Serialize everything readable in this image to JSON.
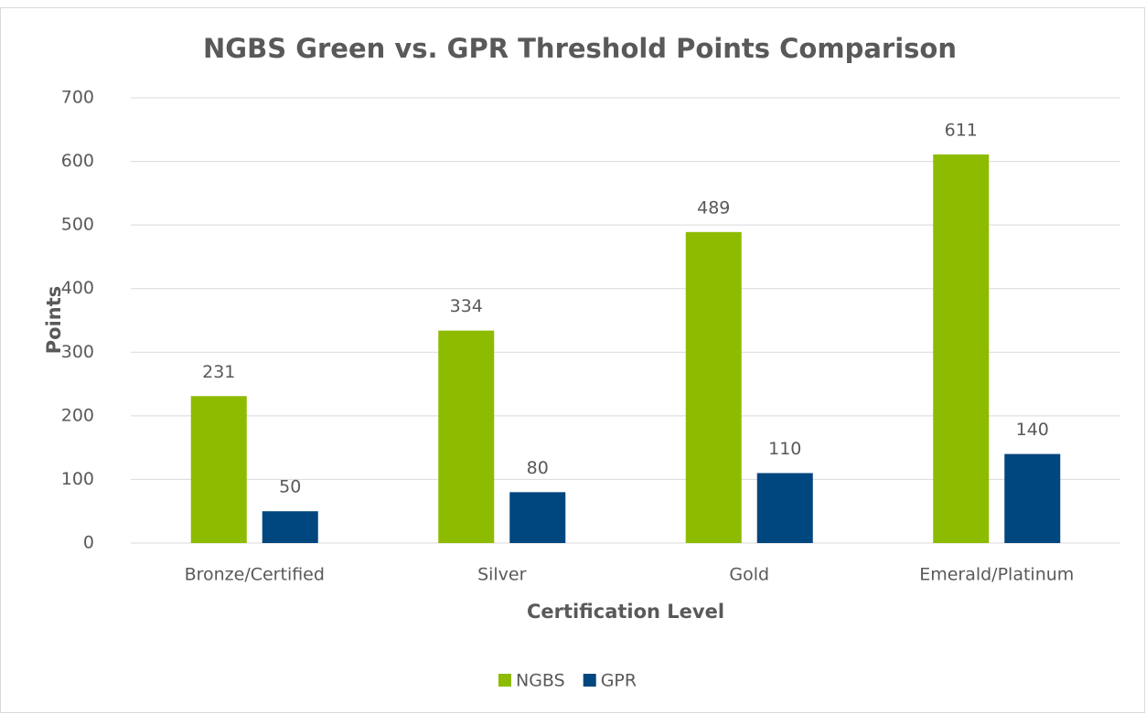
{
  "chart_data": {
    "type": "bar",
    "title": "NGBS Green vs. GPR Threshold Points Comparison",
    "x_label": "Certification Level",
    "y_label": "Points",
    "categories": [
      "Bronze/Certified",
      "Silver",
      "Gold",
      "Emerald/Platinum"
    ],
    "series": [
      {
        "name": "NGBS",
        "color": "#8dbb00",
        "values": [
          231,
          334,
          489,
          611
        ]
      },
      {
        "name": "GPR",
        "color": "#00467f",
        "values": [
          50,
          80,
          110,
          140
        ]
      }
    ],
    "ylim": [
      0,
      700
    ],
    "yticks": [
      0,
      100,
      200,
      300,
      400,
      500,
      600,
      700
    ],
    "grid": true,
    "legend": "bottom"
  }
}
